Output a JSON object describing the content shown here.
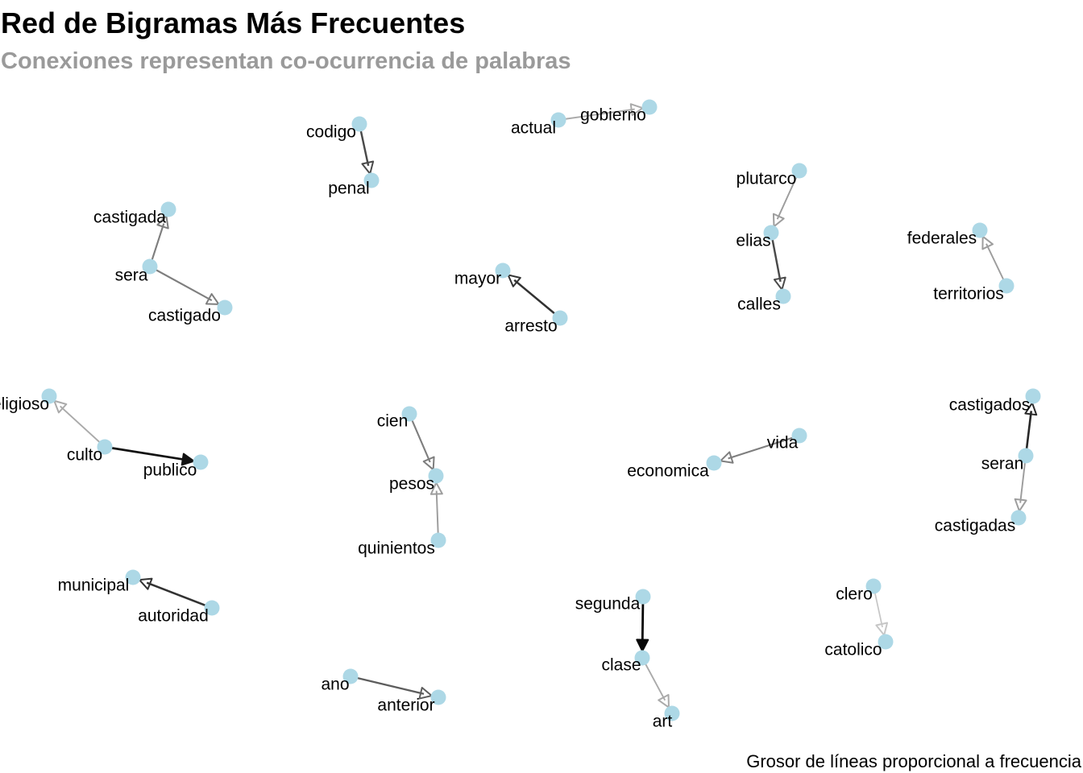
{
  "title": "Red de Bigramas Más Frecuentes",
  "subtitle": "Conexiones representan co-ocurrencia de palabras",
  "caption": "Grosor de líneas proporcional a frecuencia",
  "colors": {
    "node": "#add8e6",
    "edge": "#000000",
    "subtitle": "#9a9a9a"
  },
  "nodes": [
    {
      "id": "codigo"
    },
    {
      "id": "penal"
    },
    {
      "id": "actual"
    },
    {
      "id": "gobierno"
    },
    {
      "id": "plutarco"
    },
    {
      "id": "elias"
    },
    {
      "id": "calles"
    },
    {
      "id": "federales"
    },
    {
      "id": "territorios"
    },
    {
      "id": "castigada"
    },
    {
      "id": "sera"
    },
    {
      "id": "castigado"
    },
    {
      "id": "mayor"
    },
    {
      "id": "arresto"
    },
    {
      "id": "religioso"
    },
    {
      "id": "culto"
    },
    {
      "id": "publico"
    },
    {
      "id": "cien"
    },
    {
      "id": "pesos"
    },
    {
      "id": "quinientos"
    },
    {
      "id": "vida"
    },
    {
      "id": "economica"
    },
    {
      "id": "castigados"
    },
    {
      "id": "seran"
    },
    {
      "id": "castigadas"
    },
    {
      "id": "municipal"
    },
    {
      "id": "autoridad"
    },
    {
      "id": "segunda"
    },
    {
      "id": "clase"
    },
    {
      "id": "art"
    },
    {
      "id": "clero"
    },
    {
      "id": "catolico"
    },
    {
      "id": "ano"
    },
    {
      "id": "anterior"
    }
  ],
  "edges": [
    {
      "from": "codigo",
      "to": "penal",
      "weight": 0.7
    },
    {
      "from": "actual",
      "to": "gobierno",
      "weight": 0.25
    },
    {
      "from": "plutarco",
      "to": "elias",
      "weight": 0.3
    },
    {
      "from": "elias",
      "to": "calles",
      "weight": 0.7
    },
    {
      "from": "territorios",
      "to": "federales",
      "weight": 0.3
    },
    {
      "from": "sera",
      "to": "castigada",
      "weight": 0.45
    },
    {
      "from": "sera",
      "to": "castigado",
      "weight": 0.45
    },
    {
      "from": "arresto",
      "to": "mayor",
      "weight": 0.8
    },
    {
      "from": "culto",
      "to": "religioso",
      "weight": 0.25
    },
    {
      "from": "culto",
      "to": "publico",
      "weight": 0.95
    },
    {
      "from": "cien",
      "to": "pesos",
      "weight": 0.45
    },
    {
      "from": "quinientos",
      "to": "pesos",
      "weight": 0.3
    },
    {
      "from": "vida",
      "to": "economica",
      "weight": 0.45
    },
    {
      "from": "seran",
      "to": "castigados",
      "weight": 0.85
    },
    {
      "from": "seran",
      "to": "castigadas",
      "weight": 0.3
    },
    {
      "from": "autoridad",
      "to": "municipal",
      "weight": 0.8
    },
    {
      "from": "segunda",
      "to": "clase",
      "weight": 1.0
    },
    {
      "from": "clase",
      "to": "art",
      "weight": 0.25
    },
    {
      "from": "clero",
      "to": "catolico",
      "weight": 0.12
    },
    {
      "from": "ano",
      "to": "anterior",
      "weight": 0.6
    }
  ]
}
